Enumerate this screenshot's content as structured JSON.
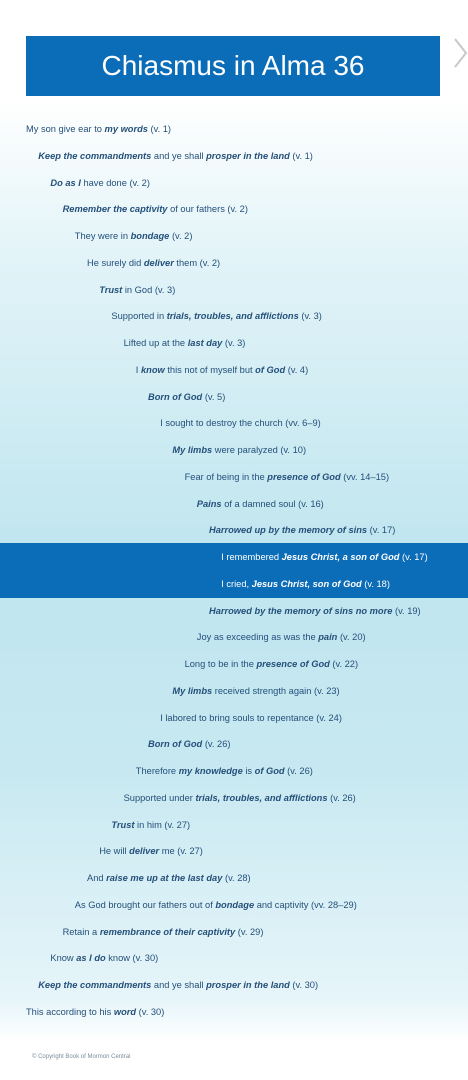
{
  "title": "Chiasmus in Alma 36",
  "lines_top": [
    [
      "My son give ear to ",
      {
        "em": "my words"
      },
      " (v. 1)"
    ],
    [
      {
        "em": "Keep the commandments"
      },
      " and ye shall ",
      {
        "em": "prosper in the land"
      },
      " (v. 1)"
    ],
    [
      {
        "em": "Do as I"
      },
      " have done (v. 2)"
    ],
    [
      {
        "em": "Remember the captivity"
      },
      " of our fathers (v. 2)"
    ],
    [
      "They were in ",
      {
        "em": "bondage"
      },
      " (v. 2)"
    ],
    [
      "He surely did ",
      {
        "em": "deliver"
      },
      " them (v. 2)"
    ],
    [
      {
        "em": "Trust"
      },
      " in God (v. 3)"
    ],
    [
      "Supported in ",
      {
        "em": "trials, troubles, and afflictions"
      },
      " (v. 3)"
    ],
    [
      "Lifted up at the ",
      {
        "em": "last day"
      },
      " (v. 3)"
    ],
    [
      "I ",
      {
        "em": "know"
      },
      " this not of myself but ",
      {
        "em": "of God"
      },
      " (v. 4)"
    ],
    [
      {
        "em": "Born of God"
      },
      " (v. 5)"
    ],
    [
      "I sought to destroy the church (vv. 6–9)"
    ],
    [
      {
        "em": "My limbs"
      },
      " were paralyzed (v. 10)"
    ],
    [
      "Fear of being in the ",
      {
        "em": "presence of God"
      },
      " (vv. 14–15)"
    ],
    [
      {
        "em": "Pains"
      },
      " of a damned soul (v. 16)"
    ],
    [
      {
        "em": "Harrowed up by the memory of sins"
      },
      " (v. 17)"
    ]
  ],
  "center": [
    [
      "I remembered ",
      {
        "em": "Jesus Christ, a son of God"
      },
      " (v. 17)"
    ],
    [
      "I cried, ",
      {
        "em": "Jesus Christ, son of God"
      },
      " (v. 18)"
    ]
  ],
  "lines_bottom": [
    [
      {
        "em": "Harrowed by the memory of sins no more"
      },
      " (v. 19)"
    ],
    [
      "Joy as exceeding as was the ",
      {
        "em": "pain"
      },
      " (v. 20)"
    ],
    [
      "Long to be in the ",
      {
        "em": "presence of God"
      },
      " (v. 22)"
    ],
    [
      {
        "em": "My limbs"
      },
      " received strength again (v. 23)"
    ],
    [
      "I labored to bring souls to repentance (v. 24)"
    ],
    [
      {
        "em": "Born of God"
      },
      " (v. 26)"
    ],
    [
      "Therefore ",
      {
        "em": "my knowledge"
      },
      " is ",
      {
        "em": "of God"
      },
      " (v. 26)"
    ],
    [
      "Supported under ",
      {
        "em": "trials, troubles, and afflictions"
      },
      " (v. 26)"
    ],
    [
      {
        "em": "Trust"
      },
      " in him (v. 27)"
    ],
    [
      "He will ",
      {
        "em": "deliver"
      },
      " me (v. 27)"
    ],
    [
      "And ",
      {
        "em": "raise me up at the last day"
      },
      " (v. 28)"
    ],
    [
      "As God brought our fathers out of ",
      {
        "em": "bondage"
      },
      " and captivity (vv. 28–29)"
    ],
    [
      "Retain a ",
      {
        "em": "remembrance of their captivity"
      },
      " (v. 29)"
    ],
    [
      "Know ",
      {
        "em": "as I do"
      },
      " know (v. 30)"
    ],
    [
      {
        "em": "Keep the commandments"
      },
      " and ye shall ",
      {
        "em": "prosper in the land"
      },
      " (v. 30)"
    ],
    [
      "This according to his ",
      {
        "em": "word"
      },
      " (v. 30)"
    ]
  ],
  "copyright": "© Copyright Book of Mormon Central"
}
